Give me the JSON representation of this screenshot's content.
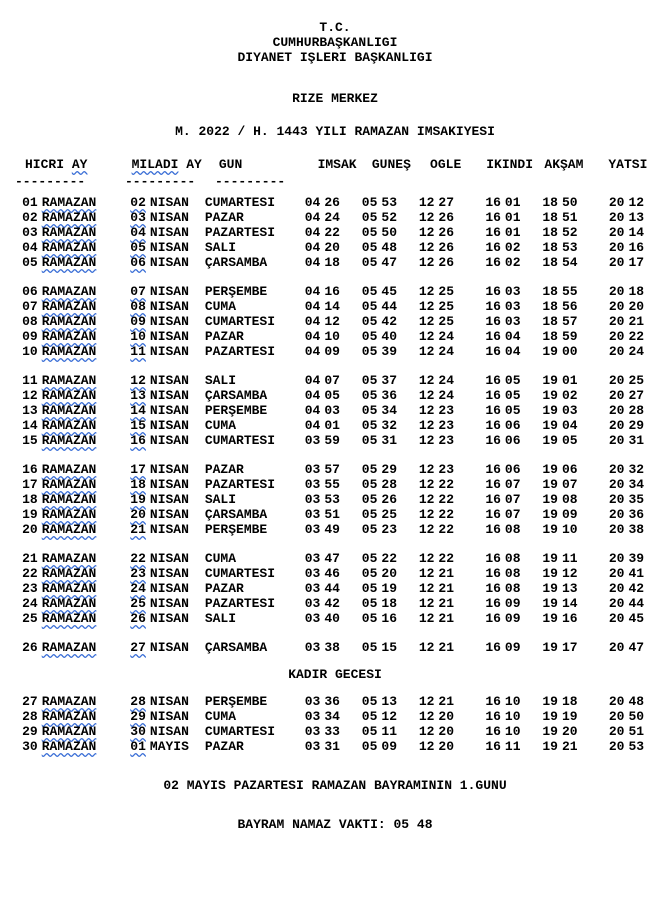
{
  "header": {
    "line1": "T.C.",
    "line2": "CUMHURBAŞKANLIGI",
    "line3": "DIYANET IŞLERI BAŞKANLIGI",
    "location": "RIZE MERKEZ",
    "title": "M. 2022 / H. 1443 YILI RAMAZAN IMSAKIYESI"
  },
  "columns": {
    "hicri": "HICRI",
    "ay1": "AY",
    "miladi": "MILADI",
    "ay2": "AY",
    "gun": "GUN",
    "imsak": "IMSAK",
    "gunes": "GUNEŞ",
    "ogle": "OGLE",
    "ikindi": "IKINDI",
    "aksam": "AKŞAM",
    "yatsi": "YATSI"
  },
  "dividers": {
    "a": "---------",
    "b": "---------",
    "c": "---------"
  },
  "kadir": "KADIR GECESI",
  "footer": {
    "bayram1": "02 MAYIS PAZARTESI RAMAZAN BAYRAMININ 1.GUNU",
    "bayram2": "BAYRAM NAMAZ VAKTI: 05 48"
  },
  "groups": [
    [
      {
        "hn": "01",
        "hm": "RAMAZAN",
        "mn": "02",
        "mm": "NISAN",
        "g": "CUMARTESI",
        "t": [
          "04",
          "26",
          "05",
          "53",
          "12",
          "27",
          "16",
          "01",
          "18",
          "50",
          "20",
          "12"
        ]
      },
      {
        "hn": "02",
        "hm": "RAMAZAN",
        "mn": "03",
        "mm": "NISAN",
        "g": "PAZAR",
        "t": [
          "04",
          "24",
          "05",
          "52",
          "12",
          "26",
          "16",
          "01",
          "18",
          "51",
          "20",
          "13"
        ]
      },
      {
        "hn": "03",
        "hm": "RAMAZAN",
        "mn": "04",
        "mm": "NISAN",
        "g": "PAZARTESI",
        "t": [
          "04",
          "22",
          "05",
          "50",
          "12",
          "26",
          "16",
          "01",
          "18",
          "52",
          "20",
          "14"
        ]
      },
      {
        "hn": "04",
        "hm": "RAMAZAN",
        "mn": "05",
        "mm": "NISAN",
        "g": "SALI",
        "t": [
          "04",
          "20",
          "05",
          "48",
          "12",
          "26",
          "16",
          "02",
          "18",
          "53",
          "20",
          "16"
        ]
      },
      {
        "hn": "05",
        "hm": "RAMAZAN",
        "mn": "06",
        "mm": "NISAN",
        "g": "ÇARSAMBA",
        "t": [
          "04",
          "18",
          "05",
          "47",
          "12",
          "26",
          "16",
          "02",
          "18",
          "54",
          "20",
          "17"
        ]
      }
    ],
    [
      {
        "hn": "06",
        "hm": "RAMAZAN",
        "mn": "07",
        "mm": "NISAN",
        "g": "PERŞEMBE",
        "t": [
          "04",
          "16",
          "05",
          "45",
          "12",
          "25",
          "16",
          "03",
          "18",
          "55",
          "20",
          "18"
        ]
      },
      {
        "hn": "07",
        "hm": "RAMAZAN",
        "mn": "08",
        "mm": "NISAN",
        "g": "CUMA",
        "t": [
          "04",
          "14",
          "05",
          "44",
          "12",
          "25",
          "16",
          "03",
          "18",
          "56",
          "20",
          "20"
        ]
      },
      {
        "hn": "08",
        "hm": "RAMAZAN",
        "mn": "09",
        "mm": "NISAN",
        "g": "CUMARTESI",
        "t": [
          "04",
          "12",
          "05",
          "42",
          "12",
          "25",
          "16",
          "03",
          "18",
          "57",
          "20",
          "21"
        ]
      },
      {
        "hn": "09",
        "hm": "RAMAZAN",
        "mn": "10",
        "mm": "NISAN",
        "g": "PAZAR",
        "t": [
          "04",
          "10",
          "05",
          "40",
          "12",
          "24",
          "16",
          "04",
          "18",
          "59",
          "20",
          "22"
        ]
      },
      {
        "hn": "10",
        "hm": "RAMAZAN",
        "mn": "11",
        "mm": "NISAN",
        "g": "PAZARTESI",
        "t": [
          "04",
          "09",
          "05",
          "39",
          "12",
          "24",
          "16",
          "04",
          "19",
          "00",
          "20",
          "24"
        ]
      }
    ],
    [
      {
        "hn": "11",
        "hm": "RAMAZAN",
        "mn": "12",
        "mm": "NISAN",
        "g": "SALI",
        "t": [
          "04",
          "07",
          "05",
          "37",
          "12",
          "24",
          "16",
          "05",
          "19",
          "01",
          "20",
          "25"
        ]
      },
      {
        "hn": "12",
        "hm": "RAMAZAN",
        "mn": "13",
        "mm": "NISAN",
        "g": "ÇARSAMBA",
        "t": [
          "04",
          "05",
          "05",
          "36",
          "12",
          "24",
          "16",
          "05",
          "19",
          "02",
          "20",
          "27"
        ]
      },
      {
        "hn": "13",
        "hm": "RAMAZAN",
        "mn": "14",
        "mm": "NISAN",
        "g": "PERŞEMBE",
        "t": [
          "04",
          "03",
          "05",
          "34",
          "12",
          "23",
          "16",
          "05",
          "19",
          "03",
          "20",
          "28"
        ]
      },
      {
        "hn": "14",
        "hm": "RAMAZAN",
        "mn": "15",
        "mm": "NISAN",
        "g": "CUMA",
        "t": [
          "04",
          "01",
          "05",
          "32",
          "12",
          "23",
          "16",
          "06",
          "19",
          "04",
          "20",
          "29"
        ]
      },
      {
        "hn": "15",
        "hm": "RAMAZAN",
        "mn": "16",
        "mm": "NISAN",
        "g": "CUMARTESI",
        "t": [
          "03",
          "59",
          "05",
          "31",
          "12",
          "23",
          "16",
          "06",
          "19",
          "05",
          "20",
          "31"
        ]
      }
    ],
    [
      {
        "hn": "16",
        "hm": "RAMAZAN",
        "mn": "17",
        "mm": "NISAN",
        "g": "PAZAR",
        "t": [
          "03",
          "57",
          "05",
          "29",
          "12",
          "23",
          "16",
          "06",
          "19",
          "06",
          "20",
          "32"
        ]
      },
      {
        "hn": "17",
        "hm": "RAMAZAN",
        "mn": "18",
        "mm": "NISAN",
        "g": "PAZARTESI",
        "t": [
          "03",
          "55",
          "05",
          "28",
          "12",
          "22",
          "16",
          "07",
          "19",
          "07",
          "20",
          "34"
        ]
      },
      {
        "hn": "18",
        "hm": "RAMAZAN",
        "mn": "19",
        "mm": "NISAN",
        "g": "SALI",
        "t": [
          "03",
          "53",
          "05",
          "26",
          "12",
          "22",
          "16",
          "07",
          "19",
          "08",
          "20",
          "35"
        ]
      },
      {
        "hn": "19",
        "hm": "RAMAZAN",
        "mn": "20",
        "mm": "NISAN",
        "g": "ÇARSAMBA",
        "t": [
          "03",
          "51",
          "05",
          "25",
          "12",
          "22",
          "16",
          "07",
          "19",
          "09",
          "20",
          "36"
        ]
      },
      {
        "hn": "20",
        "hm": "RAMAZAN",
        "mn": "21",
        "mm": "NISAN",
        "g": "PERŞEMBE",
        "t": [
          "03",
          "49",
          "05",
          "23",
          "12",
          "22",
          "16",
          "08",
          "19",
          "10",
          "20",
          "38"
        ]
      }
    ],
    [
      {
        "hn": "21",
        "hm": "RAMAZAN",
        "mn": "22",
        "mm": "NISAN",
        "g": "CUMA",
        "t": [
          "03",
          "47",
          "05",
          "22",
          "12",
          "22",
          "16",
          "08",
          "19",
          "11",
          "20",
          "39"
        ]
      },
      {
        "hn": "22",
        "hm": "RAMAZAN",
        "mn": "23",
        "mm": "NISAN",
        "g": "CUMARTESI",
        "t": [
          "03",
          "46",
          "05",
          "20",
          "12",
          "21",
          "16",
          "08",
          "19",
          "12",
          "20",
          "41"
        ]
      },
      {
        "hn": "23",
        "hm": "RAMAZAN",
        "mn": "24",
        "mm": "NISAN",
        "g": "PAZAR",
        "t": [
          "03",
          "44",
          "05",
          "19",
          "12",
          "21",
          "16",
          "08",
          "19",
          "13",
          "20",
          "42"
        ]
      },
      {
        "hn": "24",
        "hm": "RAMAZAN",
        "mn": "25",
        "mm": "NISAN",
        "g": "PAZARTESI",
        "t": [
          "03",
          "42",
          "05",
          "18",
          "12",
          "21",
          "16",
          "09",
          "19",
          "14",
          "20",
          "44"
        ]
      },
      {
        "hn": "25",
        "hm": "RAMAZAN",
        "mn": "26",
        "mm": "NISAN",
        "g": "SALI",
        "t": [
          "03",
          "40",
          "05",
          "16",
          "12",
          "21",
          "16",
          "09",
          "19",
          "16",
          "20",
          "45"
        ]
      }
    ],
    [
      {
        "hn": "26",
        "hm": "RAMAZAN",
        "mn": "27",
        "mm": "NISAN",
        "g": "ÇARSAMBA",
        "t": [
          "03",
          "38",
          "05",
          "15",
          "12",
          "21",
          "16",
          "09",
          "19",
          "17",
          "20",
          "47"
        ]
      }
    ],
    [
      {
        "hn": "27",
        "hm": "RAMAZAN",
        "mn": "28",
        "mm": "NISAN",
        "g": "PERŞEMBE",
        "t": [
          "03",
          "36",
          "05",
          "13",
          "12",
          "21",
          "16",
          "10",
          "19",
          "18",
          "20",
          "48"
        ]
      },
      {
        "hn": "28",
        "hm": "RAMAZAN",
        "mn": "29",
        "mm": "NISAN",
        "g": "CUMA",
        "t": [
          "03",
          "34",
          "05",
          "12",
          "12",
          "20",
          "16",
          "10",
          "19",
          "19",
          "20",
          "50"
        ]
      },
      {
        "hn": "29",
        "hm": "RAMAZAN",
        "mn": "30",
        "mm": "NISAN",
        "g": "CUMARTESI",
        "t": [
          "03",
          "33",
          "05",
          "11",
          "12",
          "20",
          "16",
          "10",
          "19",
          "20",
          "20",
          "51"
        ]
      },
      {
        "hn": "30",
        "hm": "RAMAZAN",
        "mn": "01",
        "mm": "MAYIS",
        "g": "PAZAR",
        "t": [
          "03",
          "31",
          "05",
          "09",
          "12",
          "20",
          "16",
          "11",
          "19",
          "21",
          "20",
          "53"
        ]
      }
    ]
  ]
}
